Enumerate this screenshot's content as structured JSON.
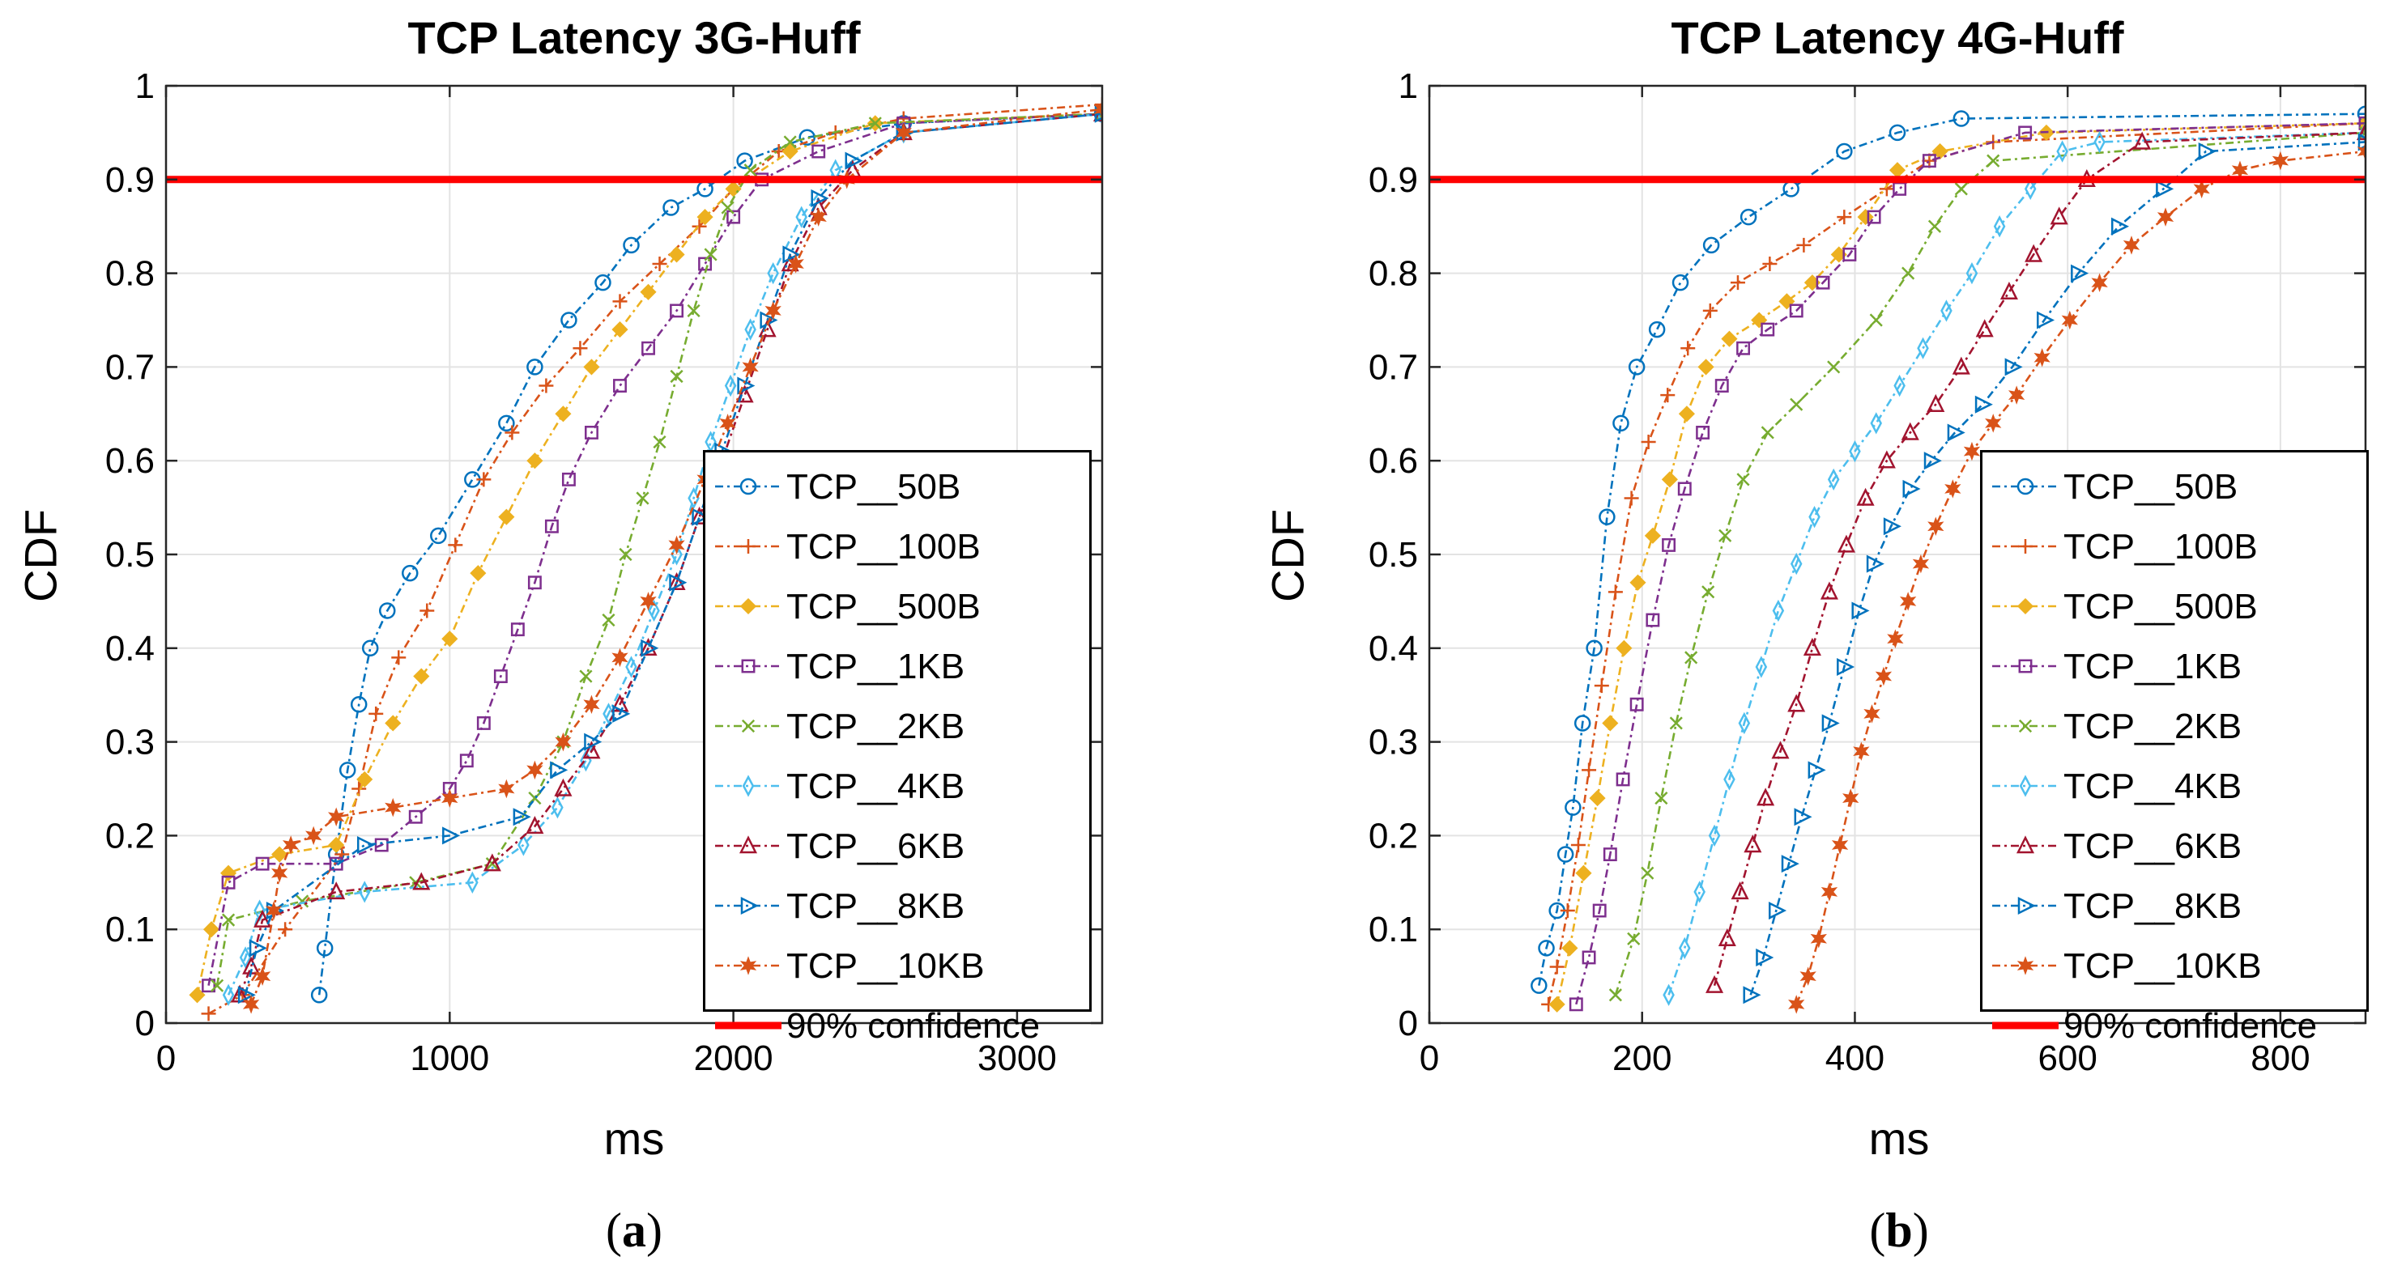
{
  "chart_data": [
    {
      "type": "line",
      "id": "a",
      "title": "TCP Latency 3G-Huff",
      "xlabel": "ms",
      "ylabel": "CDF",
      "caption_label": "a",
      "xlim": [
        0,
        3300
      ],
      "ylim": [
        0,
        1
      ],
      "xticks": [
        0,
        1000,
        2000,
        3000
      ],
      "xtick_labels": [
        "0",
        "1000",
        "2000",
        "3000"
      ],
      "yticks": [
        0,
        0.1,
        0.2,
        0.3,
        0.4,
        0.5,
        0.6,
        0.7,
        0.8,
        0.9,
        1
      ],
      "ytick_labels": [
        "0",
        "0.1",
        "0.2",
        "0.3",
        "0.4",
        "0.5",
        "0.6",
        "0.7",
        "0.8",
        "0.9",
        "1"
      ],
      "grid": true,
      "legend_position": "bottom-right",
      "confidence_line": {
        "name": "90% confidence",
        "y": 0.9,
        "color": "#ff0000"
      },
      "series": [
        {
          "name": "TCP__50B",
          "color": "#0072bd",
          "marker": "circle",
          "x": [
            540,
            560,
            600,
            640,
            680,
            720,
            780,
            860,
            960,
            1080,
            1200,
            1300,
            1420,
            1540,
            1640,
            1780,
            1900,
            2040,
            2260,
            2600,
            3300
          ],
          "y": [
            0.03,
            0.08,
            0.18,
            0.27,
            0.34,
            0.4,
            0.44,
            0.48,
            0.52,
            0.58,
            0.64,
            0.7,
            0.75,
            0.79,
            0.83,
            0.87,
            0.89,
            0.92,
            0.945,
            0.96,
            0.97
          ]
        },
        {
          "name": "TCP__100B",
          "color": "#d95319",
          "marker": "plus",
          "x": [
            150,
            270,
            420,
            620,
            680,
            740,
            820,
            920,
            1020,
            1120,
            1220,
            1340,
            1460,
            1600,
            1740,
            1880,
            2000,
            2160,
            2360,
            2600,
            3300
          ],
          "y": [
            0.01,
            0.03,
            0.1,
            0.18,
            0.25,
            0.33,
            0.39,
            0.44,
            0.51,
            0.58,
            0.63,
            0.68,
            0.72,
            0.77,
            0.81,
            0.85,
            0.89,
            0.93,
            0.95,
            0.965,
            0.98
          ]
        },
        {
          "name": "TCP__500B",
          "color": "#edb120",
          "marker": "diamond",
          "x": [
            110,
            160,
            220,
            400,
            600,
            700,
            800,
            900,
            1000,
            1100,
            1200,
            1300,
            1400,
            1500,
            1600,
            1700,
            1800,
            1900,
            2000,
            2200,
            2500,
            3300
          ],
          "y": [
            0.03,
            0.1,
            0.16,
            0.18,
            0.19,
            0.26,
            0.32,
            0.37,
            0.41,
            0.48,
            0.54,
            0.6,
            0.65,
            0.7,
            0.74,
            0.78,
            0.82,
            0.86,
            0.89,
            0.93,
            0.96,
            0.97
          ]
        },
        {
          "name": "TCP__1KB",
          "color": "#7e2f8e",
          "marker": "square",
          "x": [
            150,
            220,
            340,
            600,
            760,
            880,
            1000,
            1060,
            1120,
            1180,
            1240,
            1300,
            1360,
            1420,
            1500,
            1600,
            1700,
            1800,
            1900,
            2000,
            2100,
            2300,
            2600,
            3300
          ],
          "y": [
            0.04,
            0.15,
            0.17,
            0.17,
            0.19,
            0.22,
            0.25,
            0.28,
            0.32,
            0.37,
            0.42,
            0.47,
            0.53,
            0.58,
            0.63,
            0.68,
            0.72,
            0.76,
            0.81,
            0.86,
            0.9,
            0.93,
            0.96,
            0.97
          ]
        },
        {
          "name": "TCP__2KB",
          "color": "#77ac30",
          "marker": "cross",
          "x": [
            180,
            220,
            480,
            880,
            1150,
            1300,
            1400,
            1480,
            1560,
            1620,
            1680,
            1740,
            1800,
            1860,
            1920,
            1980,
            2060,
            2200,
            2500,
            3300
          ],
          "y": [
            0.04,
            0.11,
            0.13,
            0.15,
            0.17,
            0.24,
            0.3,
            0.37,
            0.43,
            0.5,
            0.56,
            0.62,
            0.69,
            0.76,
            0.82,
            0.87,
            0.91,
            0.94,
            0.96,
            0.97
          ]
        },
        {
          "name": "TCP__4KB",
          "color": "#4dbeee",
          "marker": "thindiamond",
          "x": [
            220,
            280,
            330,
            700,
            1080,
            1260,
            1380,
            1480,
            1560,
            1640,
            1720,
            1800,
            1860,
            1920,
            1990,
            2060,
            2140,
            2240,
            2360,
            2600,
            3300
          ],
          "y": [
            0.03,
            0.07,
            0.12,
            0.14,
            0.15,
            0.19,
            0.23,
            0.28,
            0.33,
            0.38,
            0.44,
            0.5,
            0.56,
            0.62,
            0.68,
            0.74,
            0.8,
            0.86,
            0.91,
            0.95,
            0.97
          ]
        },
        {
          "name": "TCP__6KB",
          "color": "#a2142f",
          "marker": "triangle",
          "x": [
            260,
            300,
            340,
            600,
            900,
            1150,
            1300,
            1400,
            1500,
            1600,
            1700,
            1800,
            1880,
            1960,
            2040,
            2120,
            2200,
            2300,
            2420,
            2600,
            3300
          ],
          "y": [
            0.03,
            0.06,
            0.11,
            0.14,
            0.15,
            0.17,
            0.21,
            0.25,
            0.29,
            0.34,
            0.4,
            0.47,
            0.54,
            0.6,
            0.67,
            0.74,
            0.81,
            0.87,
            0.91,
            0.95,
            0.97
          ]
        },
        {
          "name": "TCP__8KB",
          "color": "#0072bd",
          "marker": "triangleright",
          "x": [
            280,
            320,
            380,
            700,
            1000,
            1250,
            1380,
            1500,
            1600,
            1700,
            1800,
            1880,
            1960,
            2040,
            2120,
            2200,
            2300,
            2420,
            2600,
            3300
          ],
          "y": [
            0.03,
            0.08,
            0.12,
            0.19,
            0.2,
            0.22,
            0.27,
            0.3,
            0.33,
            0.4,
            0.47,
            0.54,
            0.61,
            0.68,
            0.75,
            0.82,
            0.88,
            0.92,
            0.95,
            0.97
          ]
        },
        {
          "name": "TCP__10KB",
          "color": "#d95319",
          "marker": "hexagram",
          "x": [
            300,
            340,
            380,
            400,
            440,
            520,
            600,
            800,
            1000,
            1200,
            1300,
            1400,
            1500,
            1600,
            1700,
            1800,
            1900,
            1980,
            2060,
            2140,
            2220,
            2300,
            2400,
            2600,
            3300
          ],
          "y": [
            0.02,
            0.05,
            0.12,
            0.16,
            0.19,
            0.2,
            0.22,
            0.23,
            0.24,
            0.25,
            0.27,
            0.3,
            0.34,
            0.39,
            0.45,
            0.51,
            0.58,
            0.64,
            0.7,
            0.76,
            0.81,
            0.86,
            0.9,
            0.95,
            0.975
          ]
        }
      ]
    },
    {
      "type": "line",
      "id": "b",
      "title": "TCP Latency 4G-Huff",
      "xlabel": "ms",
      "ylabel": "CDF",
      "caption_label": "b",
      "xlim": [
        0,
        880
      ],
      "ylim": [
        0,
        1
      ],
      "xticks": [
        0,
        200,
        400,
        600,
        800
      ],
      "xtick_labels": [
        "0",
        "200",
        "400",
        "600",
        "800"
      ],
      "yticks": [
        0,
        0.1,
        0.2,
        0.3,
        0.4,
        0.5,
        0.6,
        0.7,
        0.8,
        0.9,
        1
      ],
      "ytick_labels": [
        "0",
        "0.1",
        "0.2",
        "0.3",
        "0.4",
        "0.5",
        "0.6",
        "0.7",
        "0.8",
        "0.9",
        "1"
      ],
      "grid": true,
      "legend_position": "bottom-right",
      "confidence_line": {
        "name": "90% confidence",
        "y": 0.9,
        "color": "#ff0000"
      },
      "series": [
        {
          "name": "TCP__50B",
          "color": "#0072bd",
          "marker": "circle",
          "x": [
            103,
            110,
            120,
            128,
            135,
            144,
            155,
            167,
            180,
            195,
            214,
            236,
            265,
            300,
            340,
            390,
            440,
            500,
            880
          ],
          "y": [
            0.04,
            0.08,
            0.12,
            0.18,
            0.23,
            0.32,
            0.4,
            0.54,
            0.64,
            0.7,
            0.74,
            0.79,
            0.83,
            0.86,
            0.89,
            0.93,
            0.95,
            0.965,
            0.97
          ]
        },
        {
          "name": "TCP__100B",
          "color": "#d95319",
          "marker": "plus",
          "x": [
            112,
            120,
            130,
            140,
            150,
            162,
            175,
            190,
            206,
            224,
            243,
            264,
            290,
            320,
            352,
            390,
            430,
            470,
            530,
            880
          ],
          "y": [
            0.02,
            0.06,
            0.12,
            0.19,
            0.27,
            0.36,
            0.46,
            0.56,
            0.62,
            0.67,
            0.72,
            0.76,
            0.79,
            0.81,
            0.83,
            0.86,
            0.89,
            0.92,
            0.94,
            0.96
          ]
        },
        {
          "name": "TCP__500B",
          "color": "#edb120",
          "marker": "diamond",
          "x": [
            120,
            132,
            145,
            158,
            170,
            183,
            196,
            210,
            226,
            242,
            260,
            282,
            310,
            336,
            360,
            385,
            410,
            440,
            480,
            580,
            880
          ],
          "y": [
            0.02,
            0.08,
            0.16,
            0.24,
            0.32,
            0.4,
            0.47,
            0.52,
            0.58,
            0.65,
            0.7,
            0.73,
            0.75,
            0.77,
            0.79,
            0.82,
            0.86,
            0.91,
            0.93,
            0.95,
            0.96
          ]
        },
        {
          "name": "TCP__1KB",
          "color": "#7e2f8e",
          "marker": "square",
          "x": [
            138,
            150,
            160,
            170,
            182,
            195,
            210,
            225,
            240,
            257,
            275,
            295,
            318,
            345,
            370,
            395,
            418,
            442,
            470,
            560,
            880
          ],
          "y": [
            0.02,
            0.07,
            0.12,
            0.18,
            0.26,
            0.34,
            0.43,
            0.51,
            0.57,
            0.63,
            0.68,
            0.72,
            0.74,
            0.76,
            0.79,
            0.82,
            0.86,
            0.89,
            0.92,
            0.95,
            0.96
          ]
        },
        {
          "name": "TCP__2KB",
          "color": "#77ac30",
          "marker": "cross",
          "x": [
            175,
            192,
            205,
            218,
            232,
            246,
            262,
            278,
            295,
            318,
            345,
            380,
            420,
            450,
            475,
            500,
            530,
            880
          ],
          "y": [
            0.03,
            0.09,
            0.16,
            0.24,
            0.32,
            0.39,
            0.46,
            0.52,
            0.58,
            0.63,
            0.66,
            0.7,
            0.75,
            0.8,
            0.85,
            0.89,
            0.92,
            0.95
          ]
        },
        {
          "name": "TCP__4KB",
          "color": "#4dbeee",
          "marker": "thindiamond",
          "x": [
            225,
            240,
            254,
            268,
            282,
            296,
            312,
            328,
            345,
            362,
            380,
            400,
            420,
            442,
            464,
            486,
            510,
            536,
            565,
            595,
            630,
            880
          ],
          "y": [
            0.03,
            0.08,
            0.14,
            0.2,
            0.26,
            0.32,
            0.38,
            0.44,
            0.49,
            0.54,
            0.58,
            0.61,
            0.64,
            0.68,
            0.72,
            0.76,
            0.8,
            0.85,
            0.89,
            0.93,
            0.94,
            0.95
          ]
        },
        {
          "name": "TCP__6KB",
          "color": "#a2142f",
          "marker": "triangle",
          "x": [
            268,
            280,
            292,
            304,
            316,
            330,
            345,
            360,
            376,
            392,
            410,
            430,
            452,
            476,
            500,
            522,
            545,
            568,
            592,
            618,
            670,
            880
          ],
          "y": [
            0.04,
            0.09,
            0.14,
            0.19,
            0.24,
            0.29,
            0.34,
            0.4,
            0.46,
            0.51,
            0.56,
            0.6,
            0.63,
            0.66,
            0.7,
            0.74,
            0.78,
            0.82,
            0.86,
            0.9,
            0.94,
            0.95
          ]
        },
        {
          "name": "TCP__8KB",
          "color": "#0072bd",
          "marker": "triangleright",
          "x": [
            302,
            314,
            326,
            338,
            350,
            363,
            376,
            390,
            404,
            418,
            434,
            452,
            472,
            494,
            520,
            548,
            578,
            610,
            648,
            690,
            730,
            880
          ],
          "y": [
            0.03,
            0.07,
            0.12,
            0.17,
            0.22,
            0.27,
            0.32,
            0.38,
            0.44,
            0.49,
            0.53,
            0.57,
            0.6,
            0.63,
            0.66,
            0.7,
            0.75,
            0.8,
            0.85,
            0.89,
            0.93,
            0.94
          ]
        },
        {
          "name": "TCP__10KB",
          "color": "#d95319",
          "marker": "hexagram",
          "x": [
            345,
            356,
            366,
            376,
            386,
            396,
            406,
            416,
            427,
            438,
            450,
            462,
            476,
            492,
            510,
            530,
            552,
            576,
            602,
            630,
            660,
            692,
            726,
            762,
            800,
            880
          ],
          "y": [
            0.02,
            0.05,
            0.09,
            0.14,
            0.19,
            0.24,
            0.29,
            0.33,
            0.37,
            0.41,
            0.45,
            0.49,
            0.53,
            0.57,
            0.61,
            0.64,
            0.67,
            0.71,
            0.75,
            0.79,
            0.83,
            0.86,
            0.89,
            0.91,
            0.92,
            0.93
          ]
        }
      ]
    }
  ]
}
